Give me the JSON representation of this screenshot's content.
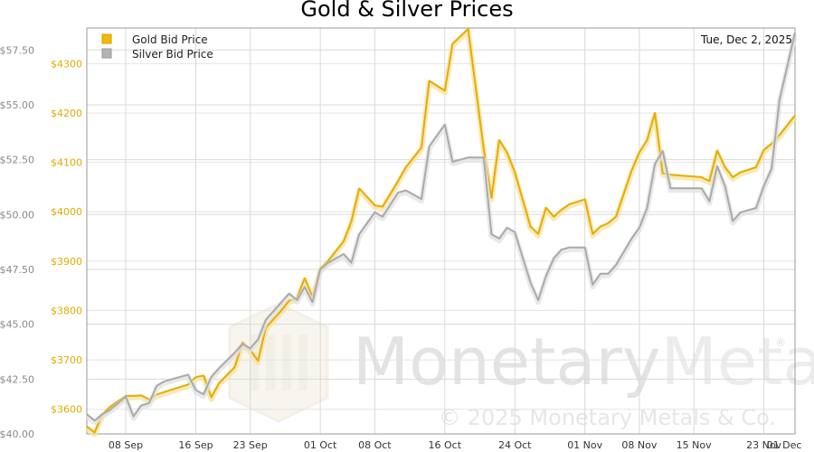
{
  "chart_data": {
    "type": "line",
    "title": "Gold & Silver Prices",
    "date_label": "Tue, Dec 2, 2025",
    "x_ticks": [
      "08 Sep",
      "16 Sep",
      "23 Sep",
      "01 Oct",
      "08 Oct",
      "16 Oct",
      "24 Oct",
      "01 Nov",
      "08 Nov",
      "15 Nov",
      "23 Nov",
      "01 Dec"
    ],
    "y_left_ticks": [
      "$40.00",
      "$42.50",
      "$45.00",
      "$47.50",
      "$50.00",
      "$52.50",
      "$55.00",
      "$57.50"
    ],
    "y_left_values": [
      40,
      42.5,
      45,
      47.5,
      50,
      52.5,
      55,
      57.5
    ],
    "y_left_range": [
      40,
      58.5
    ],
    "y_right_ticks": [
      "$3600",
      "$3700",
      "$3800",
      "$3900",
      "$4000",
      "$4100",
      "$4200",
      "$4300"
    ],
    "y_right_values": [
      3600,
      3700,
      3800,
      3900,
      4000,
      4100,
      4200,
      4300
    ],
    "y_right_range": [
      3550,
      4372
    ],
    "x_range": [
      0,
      91
    ],
    "x_tick_positions": [
      5,
      14,
      21,
      30,
      37,
      46,
      55,
      64,
      71,
      78,
      87,
      96
    ],
    "grid": true,
    "legend_position": "top-left",
    "series": [
      {
        "name": "Gold Bid Price",
        "color": "#e6ac00",
        "axis": "right",
        "x": [
          0,
          1,
          2,
          3,
          5,
          6,
          7,
          8,
          9,
          10,
          11,
          13,
          14,
          15,
          16,
          17,
          19,
          20,
          21,
          22,
          23,
          25,
          26,
          27,
          28,
          29,
          30,
          31,
          33,
          34,
          35,
          37,
          38,
          40,
          41,
          43,
          44,
          46,
          47,
          49,
          51,
          52,
          53,
          54,
          55,
          57,
          58,
          59,
          60,
          61,
          62,
          64,
          65,
          66,
          67,
          68,
          70,
          71,
          72,
          73,
          74,
          75,
          79,
          80,
          81,
          82,
          83,
          84,
          86,
          87,
          88,
          89,
          91
        ],
        "values": [
          3565,
          3553,
          3590,
          3605,
          3627,
          3627,
          3628,
          3620,
          3630,
          3635,
          3640,
          3650,
          3665,
          3668,
          3624,
          3653,
          3685,
          3735,
          3720,
          3698,
          3765,
          3800,
          3820,
          3825,
          3865,
          3828,
          3885,
          3900,
          3940,
          3980,
          4047,
          4013,
          4010,
          4062,
          4090,
          4130,
          4265,
          4245,
          4340,
          4370,
          4127,
          4028,
          4145,
          4120,
          4080,
          3970,
          3955,
          4008,
          3990,
          4004,
          4015,
          4025,
          3955,
          3970,
          3977,
          3990,
          4083,
          4120,
          4145,
          4200,
          4078,
          4075,
          4070,
          4062,
          4124,
          4090,
          4070,
          4080,
          4090,
          4125,
          4138,
          4155,
          4195
        ]
      },
      {
        "name": "Silver Bid Price",
        "color": "#aaaaaa",
        "axis": "left",
        "x": [
          0,
          1,
          2,
          3,
          5,
          6,
          7,
          8,
          9,
          10,
          11,
          13,
          14,
          15,
          16,
          17,
          19,
          20,
          21,
          22,
          23,
          25,
          26,
          27,
          28,
          29,
          30,
          31,
          33,
          34,
          35,
          37,
          38,
          40,
          41,
          43,
          44,
          46,
          47,
          49,
          51,
          52,
          53,
          54,
          55,
          57,
          58,
          59,
          60,
          61,
          62,
          64,
          65,
          66,
          67,
          68,
          70,
          71,
          72,
          73,
          74,
          75,
          79,
          80,
          81,
          82,
          83,
          84,
          86,
          87,
          88,
          89,
          91
        ],
        "values": [
          40.9,
          40.6,
          40.9,
          41.1,
          41.7,
          40.8,
          41.3,
          41.4,
          42.2,
          42.4,
          42.5,
          42.7,
          42.0,
          41.8,
          42.6,
          43.0,
          43.7,
          44.1,
          43.9,
          44.3,
          45.2,
          46.0,
          46.4,
          46.1,
          46.7,
          46.0,
          47.5,
          47.8,
          48.2,
          47.8,
          49.1,
          50.1,
          49.9,
          51.0,
          51.1,
          50.7,
          53.1,
          54.1,
          52.4,
          52.6,
          52.6,
          49.1,
          48.9,
          49.4,
          49.2,
          46.9,
          46.1,
          47.2,
          48.0,
          48.4,
          48.5,
          48.5,
          46.8,
          47.3,
          47.3,
          47.7,
          48.9,
          49.4,
          50.3,
          52.3,
          52.9,
          51.2,
          51.2,
          50.6,
          52.2,
          51.3,
          49.7,
          50.1,
          50.3,
          51.3,
          52.1,
          55.2,
          58.3
        ]
      }
    ]
  },
  "watermark": {
    "brand": "MonetaryMetals",
    "brand_bold": "Monetary",
    "brand_light": "Metals",
    "registered": "®",
    "copyright": "© 2025 Monetary Metals & Co."
  }
}
